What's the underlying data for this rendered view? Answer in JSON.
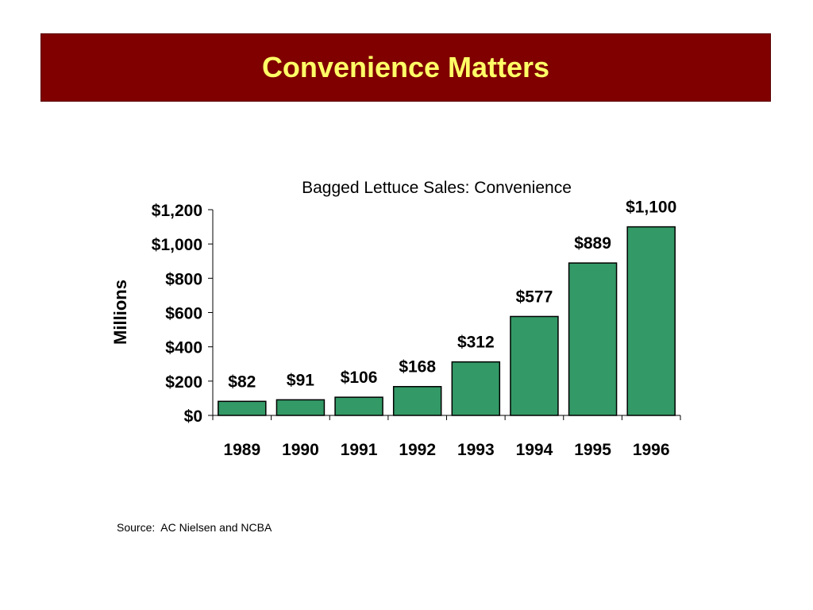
{
  "slide": {
    "title": "Convenience Matters",
    "source": "Source:  AC Nielsen and NCBA"
  },
  "colors": {
    "title_bg": "#800000",
    "title_text": "#ffff66",
    "bar_fill": "#339966",
    "bar_stroke": "#000000"
  },
  "chart_data": {
    "type": "bar",
    "title": "Bagged Lettuce Sales: Convenience",
    "xlabel": "",
    "ylabel": "Millions",
    "categories": [
      "1989",
      "1990",
      "1991",
      "1992",
      "1993",
      "1994",
      "1995",
      "1996"
    ],
    "values": [
      82,
      91,
      106,
      168,
      312,
      577,
      889,
      1100
    ],
    "data_labels": [
      "$82",
      "$91",
      "$106",
      "$168",
      "$312",
      "$577",
      "$889",
      "$1,100"
    ],
    "ylim": [
      0,
      1200
    ],
    "yticks": [
      0,
      200,
      400,
      600,
      800,
      1000,
      1200
    ],
    "ytick_labels": [
      "$0",
      "$200",
      "$400",
      "$600",
      "$800",
      "$1,000",
      "$1,200"
    ],
    "grid": false,
    "legend": "none"
  }
}
